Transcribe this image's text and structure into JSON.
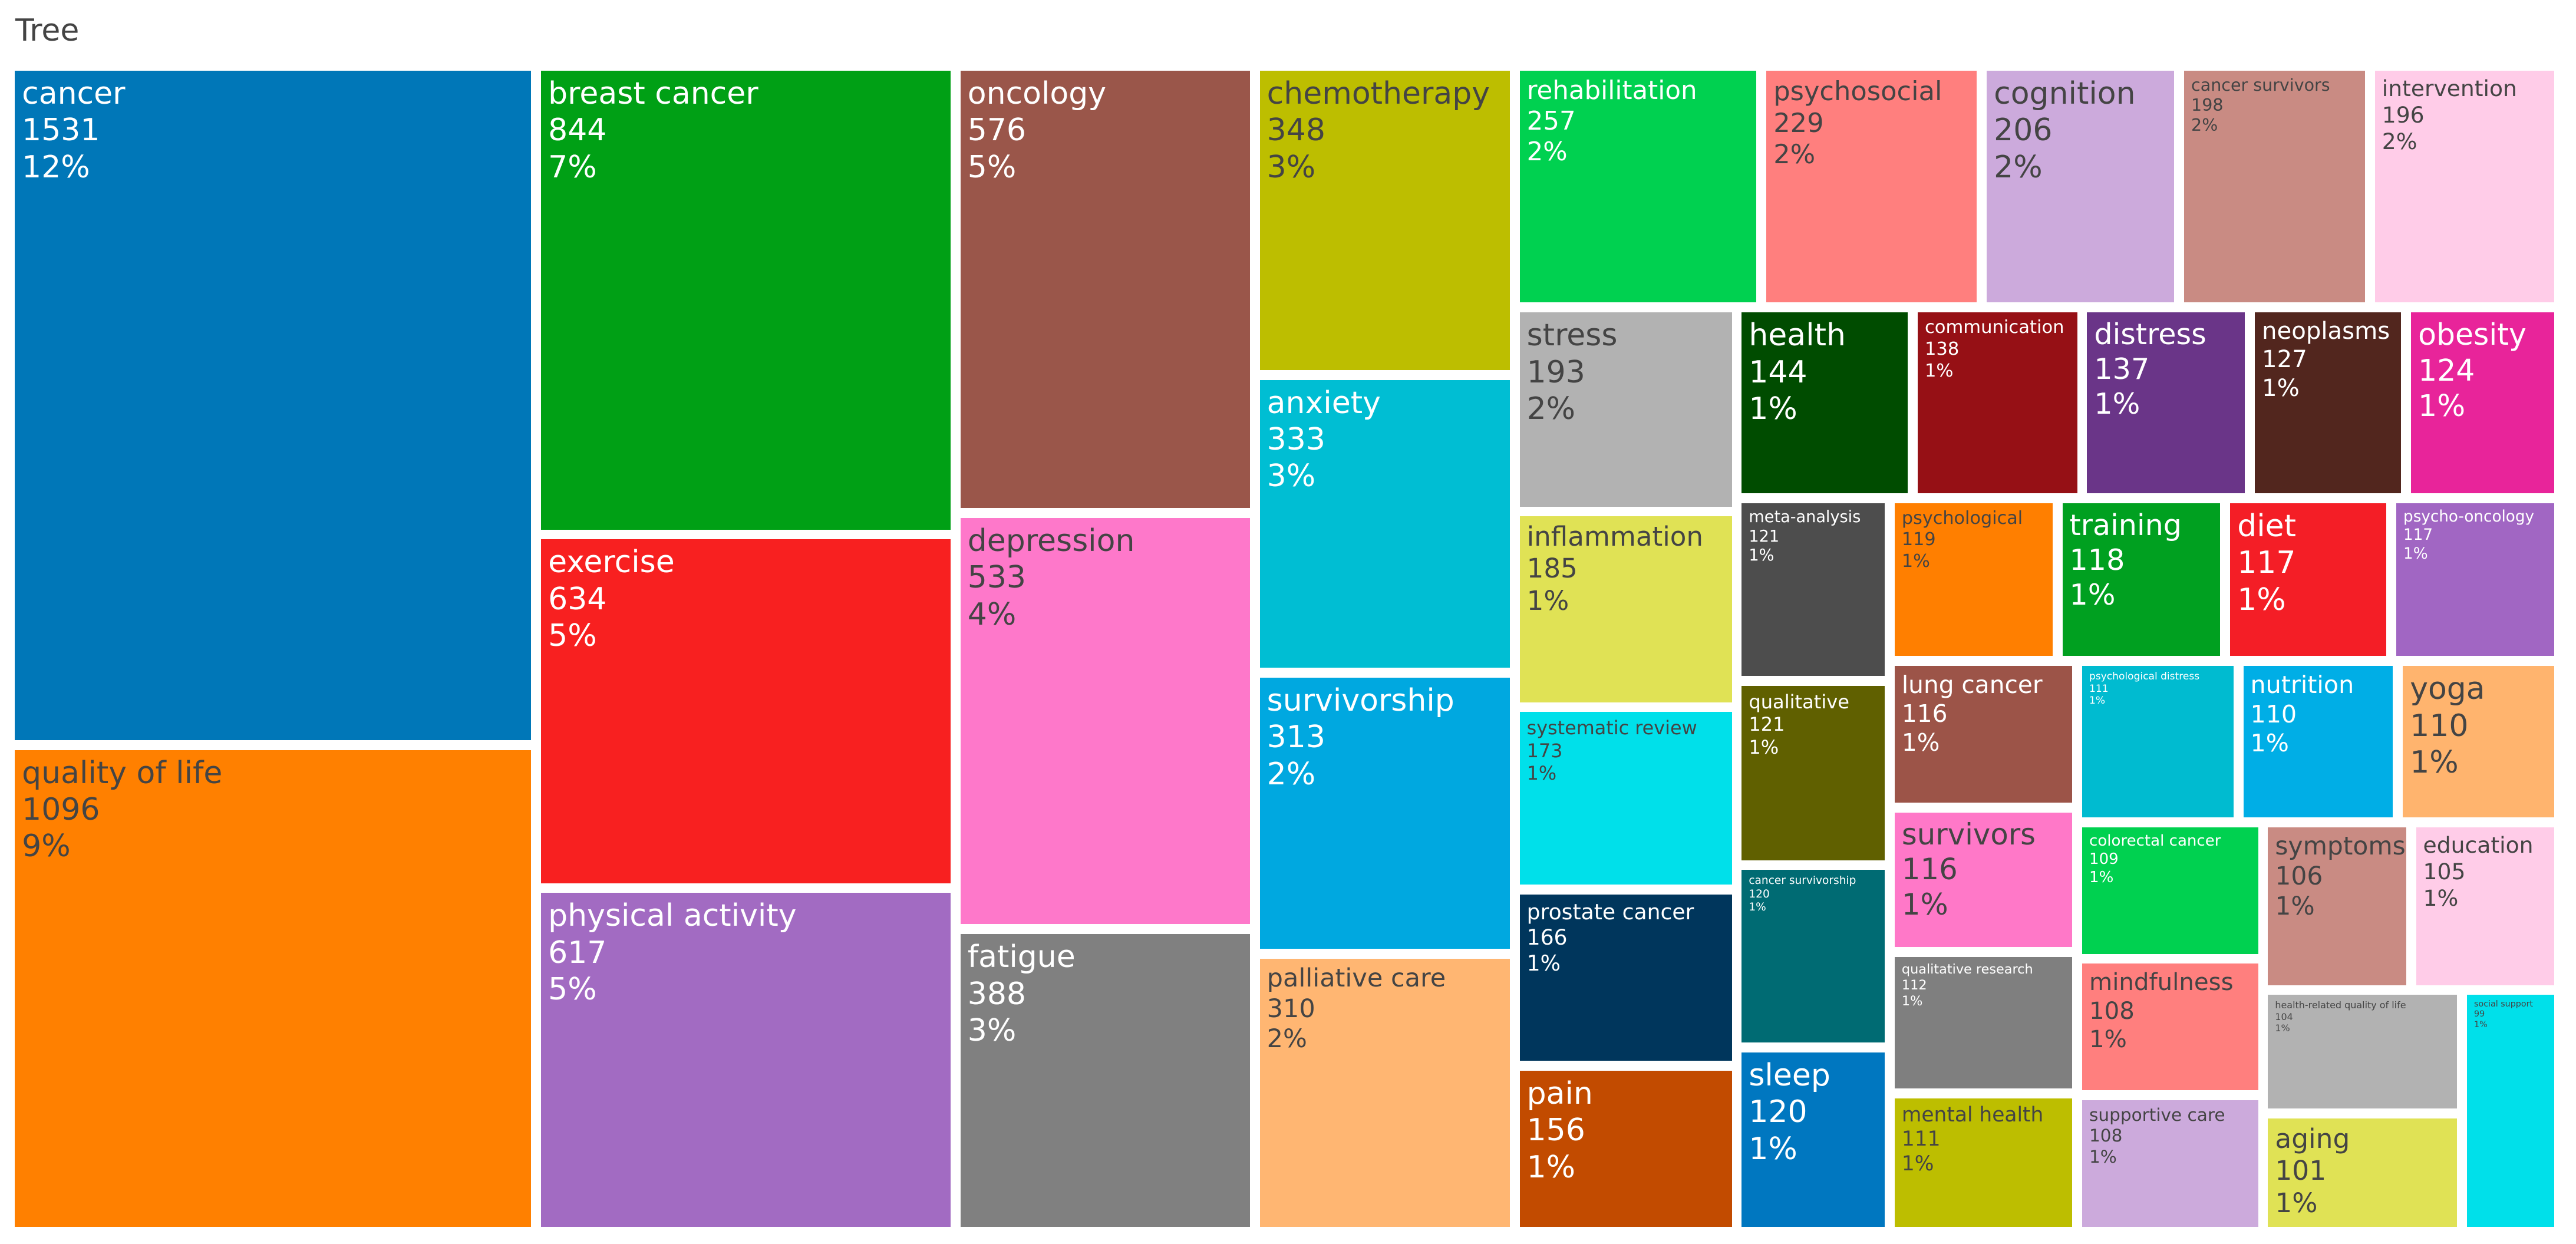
{
  "title": "Tree",
  "chart_data": {
    "type": "treemap",
    "title": "Tree",
    "items": [
      {
        "label": "cancer",
        "value": 1531,
        "pct": "12%",
        "color": "#0077B8"
      },
      {
        "label": "quality of life",
        "value": 1096,
        "pct": "9%",
        "color": "#FF8000"
      },
      {
        "label": "breast cancer",
        "value": 844,
        "pct": "7%",
        "color": "#00A015"
      },
      {
        "label": "exercise",
        "value": 634,
        "pct": "5%",
        "color": "#F82020"
      },
      {
        "label": "physical activity",
        "value": 617,
        "pct": "5%",
        "color": "#A26BC2"
      },
      {
        "label": "oncology",
        "value": 576,
        "pct": "5%",
        "color": "#9A564A"
      },
      {
        "label": "depression",
        "value": 533,
        "pct": "4%",
        "color": "#FE78CA"
      },
      {
        "label": "fatigue",
        "value": 388,
        "pct": "3%",
        "color": "#808080"
      },
      {
        "label": "chemotherapy",
        "value": 348,
        "pct": "3%",
        "color": "#BDBE00"
      },
      {
        "label": "anxiety",
        "value": 333,
        "pct": "3%",
        "color": "#00BED3"
      },
      {
        "label": "survivorship",
        "value": 313,
        "pct": "2%",
        "color": "#00A8E0"
      },
      {
        "label": "palliative care",
        "value": 310,
        "pct": "2%",
        "color": "#FFB672"
      },
      {
        "label": "rehabilitation",
        "value": 257,
        "pct": "2%",
        "color": "#00D150"
      },
      {
        "label": "psychosocial",
        "value": 229,
        "pct": "2%",
        "color": "#FF7F7E"
      },
      {
        "label": "cognition",
        "value": 206,
        "pct": "2%",
        "color": "#CCAADC"
      },
      {
        "label": "cancer survivors",
        "value": 198,
        "pct": "2%",
        "color": "#C98B83"
      },
      {
        "label": "intervention",
        "value": 196,
        "pct": "2%",
        "color": "#FFCCE8"
      },
      {
        "label": "stress",
        "value": 193,
        "pct": "2%",
        "color": "#B2B2B2"
      },
      {
        "label": "inflammation",
        "value": 185,
        "pct": "1%",
        "color": "#E0E255"
      },
      {
        "label": "systematic review",
        "value": 173,
        "pct": "1%",
        "color": "#00E0EA"
      },
      {
        "label": "prostate cancer",
        "value": 166,
        "pct": "1%",
        "color": "#00365C"
      },
      {
        "label": "pain",
        "value": 156,
        "pct": "1%",
        "color": "#C24B00"
      },
      {
        "label": "health",
        "value": 144,
        "pct": "1%",
        "color": "#004C00"
      },
      {
        "label": "communication",
        "value": 138,
        "pct": "1%",
        "color": "#961015"
      },
      {
        "label": "distress",
        "value": 137,
        "pct": "1%",
        "color": "#6A3588"
      },
      {
        "label": "neoplasms",
        "value": 127,
        "pct": "1%",
        "color": "#52261E"
      },
      {
        "label": "obesity",
        "value": 124,
        "pct": "1%",
        "color": "#E8249A"
      },
      {
        "label": "meta-analysis",
        "value": 121,
        "pct": "1%",
        "color": "#4D4D4D"
      },
      {
        "label": "qualitative",
        "value": 121,
        "pct": "1%",
        "color": "#606000"
      },
      {
        "label": "cancer survivorship",
        "value": 120,
        "pct": "1%",
        "color": "#006B73"
      },
      {
        "label": "sleep",
        "value": 120,
        "pct": "1%",
        "color": "#0077C0"
      },
      {
        "label": "psychological",
        "value": 119,
        "pct": "1%",
        "color": "#FF7F00"
      },
      {
        "label": "training",
        "value": 118,
        "pct": "1%",
        "color": "#00A020"
      },
      {
        "label": "diet",
        "value": 117,
        "pct": "1%",
        "color": "#F41E26"
      },
      {
        "label": "psycho-oncology",
        "value": 117,
        "pct": "1%",
        "color": "#A166C3"
      },
      {
        "label": "lung cancer",
        "value": 116,
        "pct": "1%",
        "color": "#9C5448"
      },
      {
        "label": "survivors",
        "value": 116,
        "pct": "1%",
        "color": "#FF78C8"
      },
      {
        "label": "qualitative research",
        "value": 112,
        "pct": "1%",
        "color": "#7F7F7F"
      },
      {
        "label": "mental health",
        "value": 111,
        "pct": "1%",
        "color": "#BDBE00"
      },
      {
        "label": "psychological distress",
        "value": 111,
        "pct": "1%",
        "color": "#00BBD0"
      },
      {
        "label": "nutrition",
        "value": 110,
        "pct": "1%",
        "color": "#00AEE6"
      },
      {
        "label": "yoga",
        "value": 110,
        "pct": "1%",
        "color": "#FFB46E"
      },
      {
        "label": "colorectal cancer",
        "value": 109,
        "pct": "1%",
        "color": "#00D150"
      },
      {
        "label": "mindfulness",
        "value": 108,
        "pct": "1%",
        "color": "#FF7F7E"
      },
      {
        "label": "supportive care",
        "value": 108,
        "pct": "1%",
        "color": "#CCAADC"
      },
      {
        "label": "symptoms",
        "value": 106,
        "pct": "1%",
        "color": "#C98B83"
      },
      {
        "label": "education",
        "value": 105,
        "pct": "1%",
        "color": "#FFCCE8"
      },
      {
        "label": "health-related quality of life",
        "value": 104,
        "pct": "1%",
        "color": "#B2B2B2"
      },
      {
        "label": "aging",
        "value": 101,
        "pct": "1%",
        "color": "#E0E255"
      },
      {
        "label": "social support",
        "value": 99,
        "pct": "1%",
        "color": "#00E0EA"
      }
    ]
  }
}
